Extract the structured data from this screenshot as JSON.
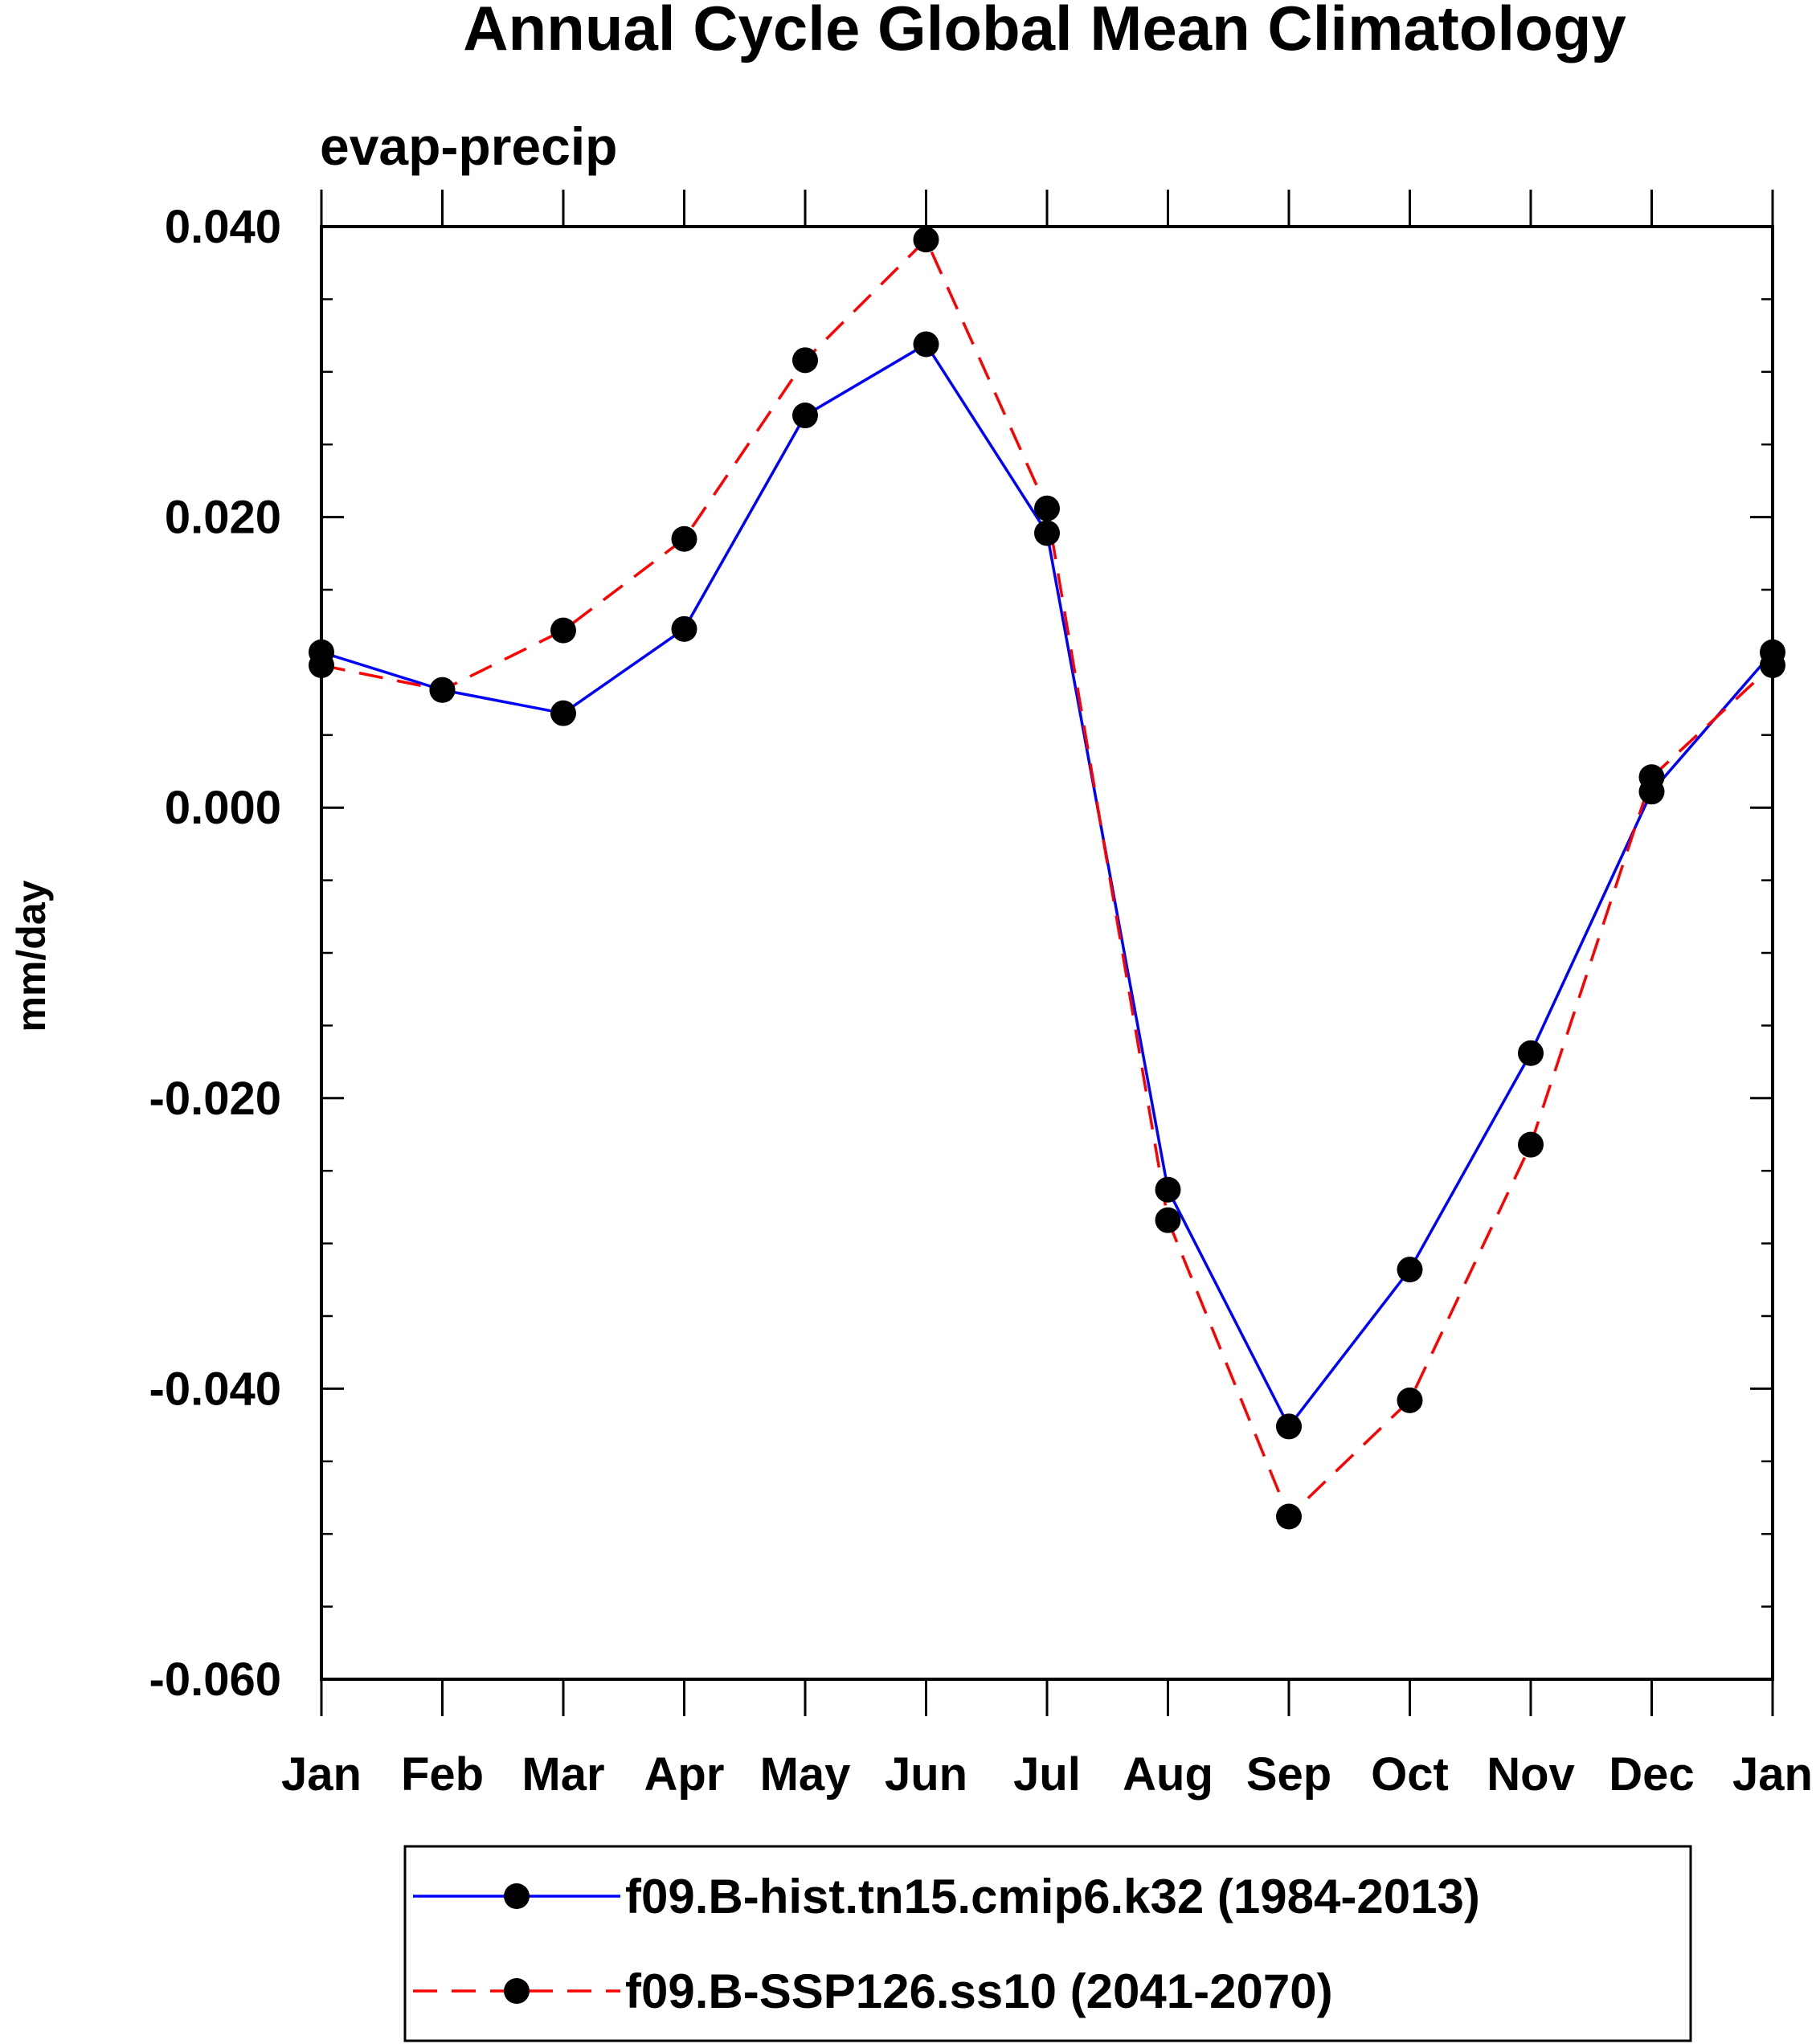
{
  "chart_data": {
    "type": "line",
    "title": "Annual Cycle Global Mean Climatology",
    "subtitle": "evap-precip",
    "ylabel": "mm/day",
    "xlabel": "",
    "categories": [
      "Jan",
      "Feb",
      "Mar",
      "Apr",
      "May",
      "Jun",
      "Jul",
      "Aug",
      "Sep",
      "Oct",
      "Nov",
      "Dec",
      "Jan"
    ],
    "ylim": [
      -0.06,
      0.04
    ],
    "yticks": [
      0.04,
      0.02,
      0.0,
      -0.02,
      -0.04,
      -0.06
    ],
    "ytick_labels": [
      "0.040",
      "0.020",
      "0.000",
      "-0.020",
      "-0.040",
      "-0.060"
    ],
    "yminor_step": 0.005,
    "legend_position": "bottom",
    "series": [
      {
        "name": "f09.B-hist.tn15.cmip6.k32 (1984-2013)",
        "color": "#0000ff",
        "line_style": "solid",
        "marker": "filled-circle",
        "values": [
          0.0107,
          0.0081,
          0.0065,
          0.0123,
          0.027,
          0.0319,
          0.0189,
          -0.0263,
          -0.0426,
          -0.0318,
          -0.0169,
          0.0011,
          0.0107
        ]
      },
      {
        "name": "f09.B-SSP126.ss10 (2041-2070)",
        "color": "#ff0000",
        "line_style": "dashed",
        "marker": "filled-circle",
        "values": [
          0.0098,
          0.0081,
          0.0122,
          0.0185,
          0.0308,
          0.0391,
          0.0206,
          -0.0284,
          -0.0488,
          -0.0408,
          -0.0232,
          0.0021,
          0.0098
        ]
      }
    ]
  }
}
